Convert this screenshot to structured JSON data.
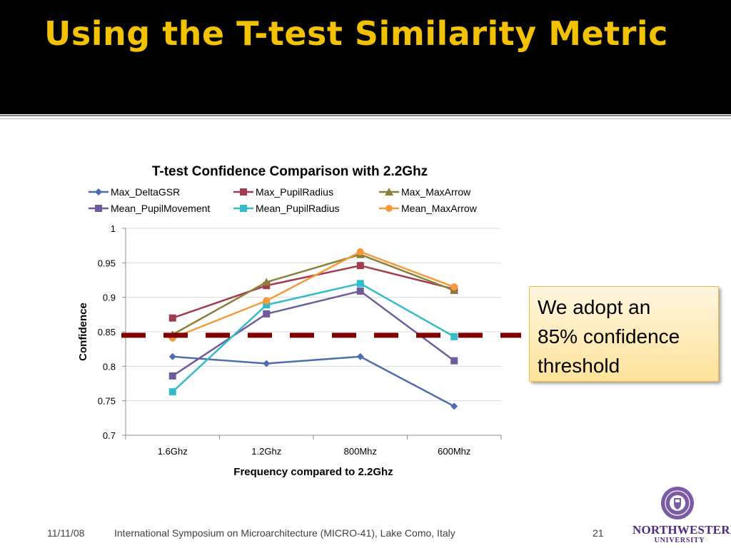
{
  "slide": {
    "title": "Using the T-test Similarity Metric",
    "title_color": "#f2c200",
    "background_band": "#000000"
  },
  "callout": {
    "text": "We adopt an\n85% confidence\nthreshold"
  },
  "footer": {
    "date": "11/11/08",
    "event": "International Symposium on Microarchitecture (MICRO-41), Lake Como, Italy",
    "page": "21"
  },
  "logo": {
    "name": "NORTHWESTERN",
    "sub": "UNIVERSITY",
    "color": "#4e2a84"
  },
  "chart_data": {
    "type": "line",
    "title": "T-test Confidence Comparison with 2.2Ghz",
    "xlabel": "Frequency compared to 2.2Ghz",
    "ylabel": "Confidence",
    "categories": [
      "1.6Ghz",
      "1.2Ghz",
      "800Mhz",
      "600Mhz"
    ],
    "ylim": [
      0.7,
      1
    ],
    "yticks": [
      "0.7",
      "0.75",
      "0.8",
      "0.85",
      "0.9",
      "0.95",
      "1"
    ],
    "grid": true,
    "legend_position": "top",
    "threshold": {
      "value": 0.845,
      "color": "#7f0000",
      "style": "dashed"
    },
    "series": [
      {
        "name": "Max_DeltaGSR",
        "color": "#4f6bb2",
        "marker": "diamond",
        "values": [
          0.814,
          0.804,
          0.814,
          0.742
        ]
      },
      {
        "name": "Max_PupilRadius",
        "color": "#a13c4e",
        "marker": "square",
        "values": [
          0.87,
          0.917,
          0.946,
          0.912
        ]
      },
      {
        "name": "Max_MaxArrow",
        "color": "#8b7f3b",
        "marker": "triangle",
        "values": [
          0.846,
          0.922,
          0.962,
          0.91
        ]
      },
      {
        "name": "Mean_PupilMovement",
        "color": "#6f5a9c",
        "marker": "square",
        "values": [
          0.786,
          0.876,
          0.909,
          0.808
        ]
      },
      {
        "name": "Mean_PupilRadius",
        "color": "#33bcc8",
        "marker": "square",
        "values": [
          0.763,
          0.889,
          0.92,
          0.843
        ]
      },
      {
        "name": "Mean_MaxArrow",
        "color": "#f59a3a",
        "marker": "circle",
        "values": [
          0.841,
          0.895,
          0.966,
          0.915
        ]
      }
    ]
  }
}
